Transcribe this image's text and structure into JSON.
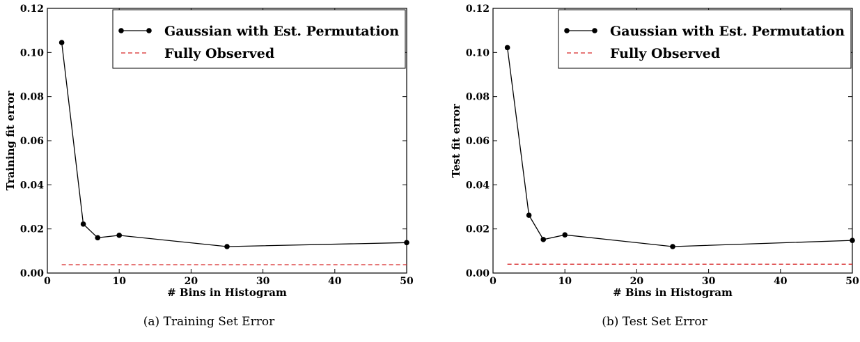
{
  "chart_data": [
    {
      "type": "line",
      "caption": "(a) Training Set Error",
      "xlabel": "# Bins in Histogram",
      "ylabel": "Training fit error",
      "xlim": [
        0,
        50
      ],
      "ylim": [
        0.0,
        0.12
      ],
      "xticks": [
        "0",
        "10",
        "20",
        "30",
        "40",
        "50"
      ],
      "yticks": [
        "0.00",
        "0.02",
        "0.04",
        "0.06",
        "0.08",
        "0.10",
        "0.12"
      ],
      "legend_position": "top-right",
      "grid": false,
      "series": [
        {
          "name": "Gaussian with Est. Permutation",
          "style": "solid-markers",
          "color": "#000000",
          "x": [
            2,
            5,
            7,
            10,
            25,
            50
          ],
          "y": [
            0.1045,
            0.0222,
            0.016,
            0.0171,
            0.012,
            0.0138
          ]
        },
        {
          "name": "Fully Observed",
          "style": "dashed",
          "color": "#d62728",
          "x": [
            2,
            50
          ],
          "y": [
            0.0038,
            0.0038
          ]
        }
      ]
    },
    {
      "type": "line",
      "caption": "(b) Test Set Error",
      "xlabel": "# Bins in Histogram",
      "ylabel": "Test fit error",
      "xlim": [
        0,
        50
      ],
      "ylim": [
        0.0,
        0.12
      ],
      "xticks": [
        "0",
        "10",
        "20",
        "30",
        "40",
        "50"
      ],
      "yticks": [
        "0.00",
        "0.02",
        "0.04",
        "0.06",
        "0.08",
        "0.10",
        "0.12"
      ],
      "legend_position": "top-right",
      "grid": false,
      "series": [
        {
          "name": "Gaussian with Est. Permutation",
          "style": "solid-markers",
          "color": "#000000",
          "x": [
            2,
            5,
            7,
            10,
            25,
            50
          ],
          "y": [
            0.1022,
            0.0262,
            0.0152,
            0.0173,
            0.012,
            0.0148
          ]
        },
        {
          "name": "Fully Observed",
          "style": "dashed",
          "color": "#d62728",
          "x": [
            2,
            50
          ],
          "y": [
            0.004,
            0.004
          ]
        }
      ]
    }
  ]
}
